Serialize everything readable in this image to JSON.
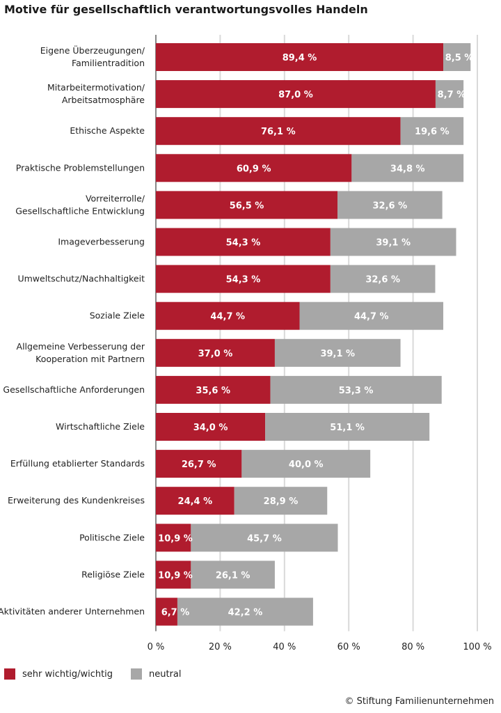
{
  "colors": {
    "important": "#b01c2e",
    "neutral": "#a7a7a7",
    "grid": "#d9d9d9",
    "axis": "#888888"
  },
  "credit": "© Stiftung Familienunternehmen",
  "chart_data": {
    "type": "bar",
    "orientation": "horizontal",
    "stacked": true,
    "title": "Motive für gesellschaftlich verantwortungsvolles Handeln",
    "xlabel": "",
    "ylabel": "",
    "xlim": [
      0,
      100
    ],
    "x_ticks": [
      "0 %",
      "20 %",
      "40 %",
      "60 %",
      "80 %",
      "100 %"
    ],
    "grid": true,
    "legend_position": "bottom-left",
    "categories": [
      [
        "Eigene Überzeugungen/",
        "Familientradition"
      ],
      [
        "Mitarbeitermotivation/",
        "Arbeitsatmosphäre"
      ],
      [
        "Ethische Aspekte"
      ],
      [
        "Praktische Problemstellungen"
      ],
      [
        "Vorreiterrolle/",
        "Gesellschaftliche Entwicklung"
      ],
      [
        "Imageverbesserung"
      ],
      [
        "Umweltschutz/Nachhaltigkeit"
      ],
      [
        "Soziale Ziele"
      ],
      [
        "Allgemeine Verbesserung der",
        "Kooperation mit Partnern"
      ],
      [
        "Gesellschaftliche Anforderungen"
      ],
      [
        "Wirtschaftliche Ziele"
      ],
      [
        "Erfüllung etablierter Standards"
      ],
      [
        "Erweiterung des Kundenkreises"
      ],
      [
        "Politische Ziele"
      ],
      [
        "Religiöse Ziele"
      ],
      [
        "Aktivitäten anderer Unternehmen"
      ]
    ],
    "series": [
      {
        "name": "sehr wichtig/wichtig",
        "values": [
          89.4,
          87.0,
          76.1,
          60.9,
          56.5,
          54.3,
          54.3,
          44.7,
          37.0,
          35.6,
          34.0,
          26.7,
          24.4,
          10.9,
          10.9,
          6.7
        ],
        "labels": [
          "89,4 %",
          "87,0 %",
          "76,1 %",
          "60,9 %",
          "56,5 %",
          "54,3 %",
          "54,3 %",
          "44,7 %",
          "37,0 %",
          "35,6 %",
          "34,0 %",
          "26,7 %",
          "24,4 %",
          "10,9 %",
          "10,9 %",
          "6,7 %"
        ]
      },
      {
        "name": "neutral",
        "values": [
          8.5,
          8.7,
          19.6,
          34.8,
          32.6,
          39.1,
          32.6,
          44.7,
          39.1,
          53.3,
          51.1,
          40.0,
          28.9,
          45.7,
          26.1,
          42.2
        ],
        "labels": [
          "8,5 %",
          "8,7 %",
          "19,6 %",
          "34,8 %",
          "32,6 %",
          "39,1 %",
          "32,6 %",
          "44,7 %",
          "39,1 %",
          "53,3 %",
          "51,1 %",
          "40,0 %",
          "28,9 %",
          "45,7 %",
          "26,1 %",
          "42,2 %"
        ]
      }
    ]
  }
}
